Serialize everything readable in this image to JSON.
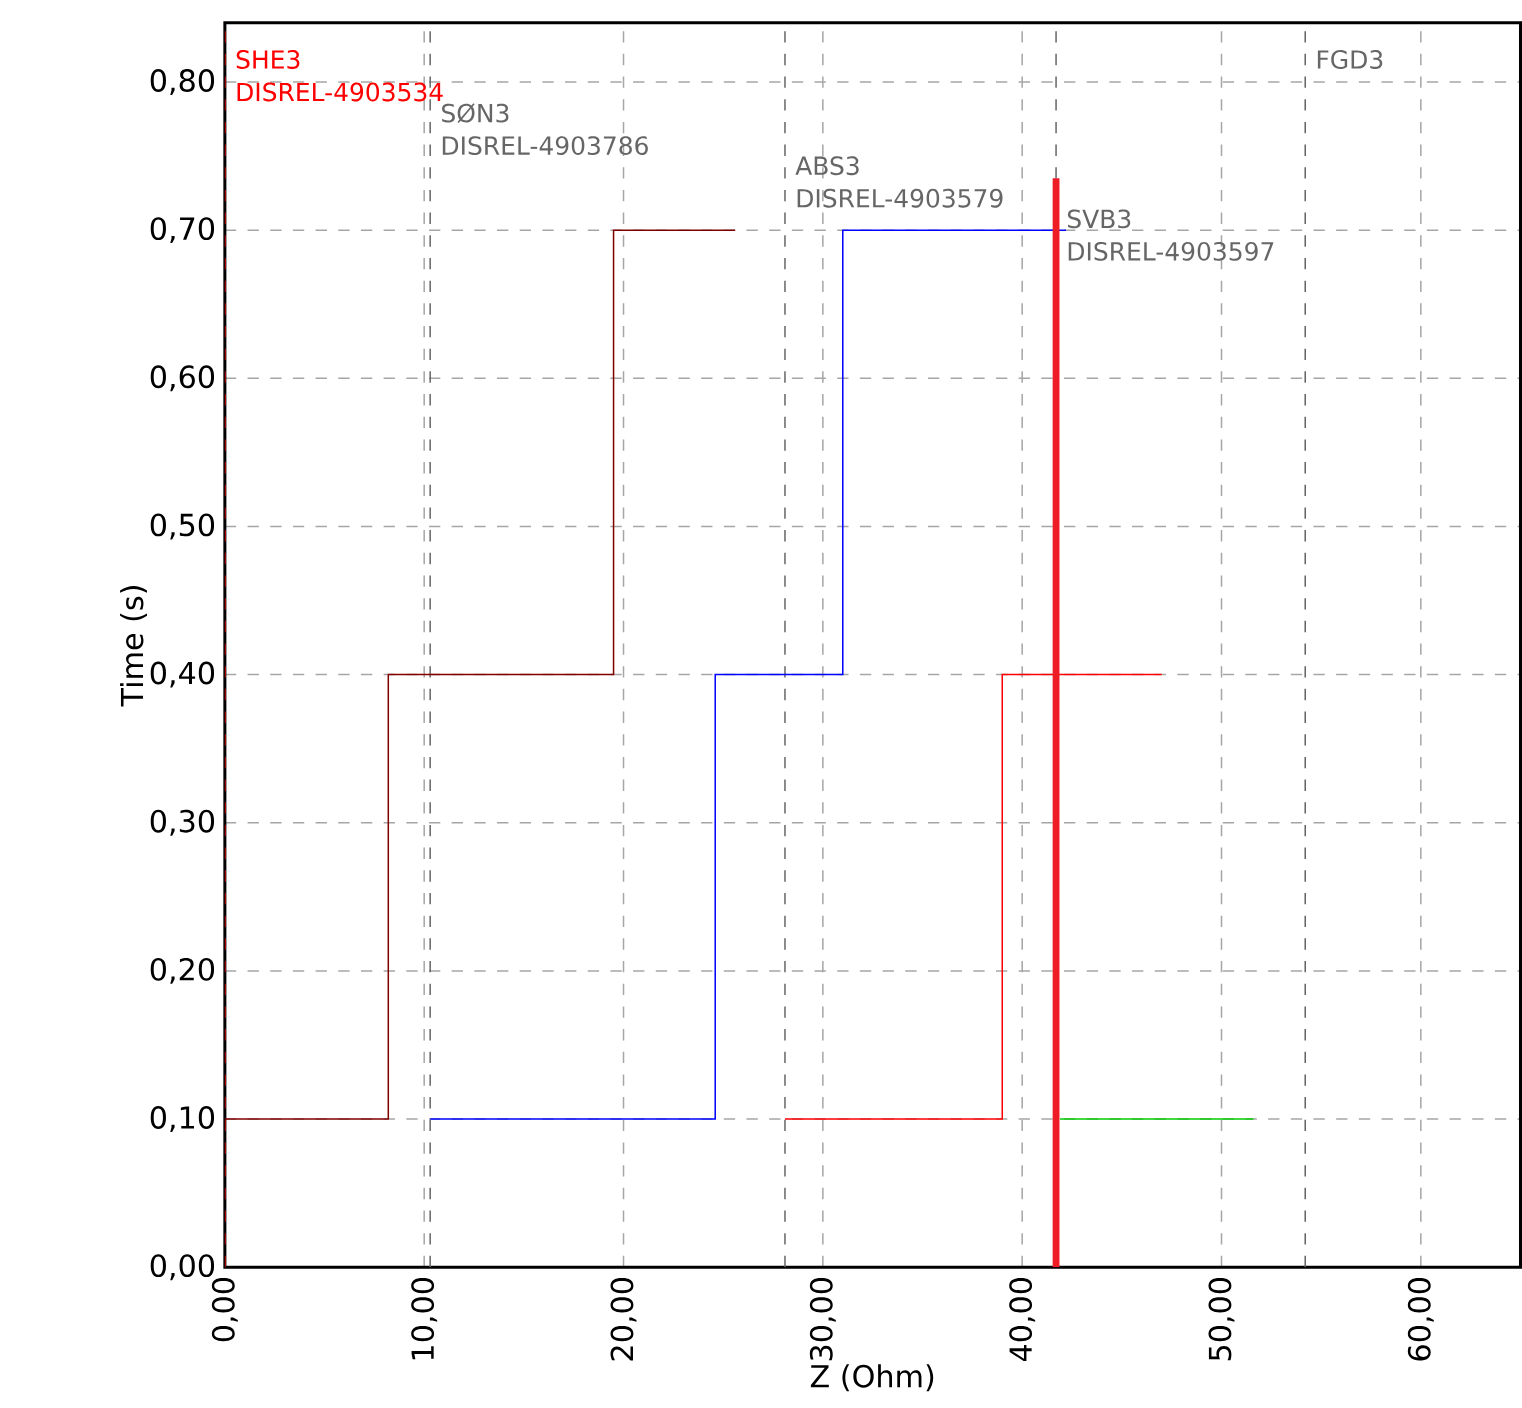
{
  "chart_data": {
    "type": "step",
    "xlabel": "Z (Ohm)",
    "ylabel": "Time (s)",
    "xlim": [
      0,
      65
    ],
    "ylim": [
      0,
      0.84
    ],
    "xticks": [
      {
        "value": 0,
        "label": "0,00"
      },
      {
        "value": 10,
        "label": "10,00"
      },
      {
        "value": 20,
        "label": "20,00"
      },
      {
        "value": 30,
        "label": "30,00"
      },
      {
        "value": 40,
        "label": "40,00"
      },
      {
        "value": 50,
        "label": "50,00"
      },
      {
        "value": 60,
        "label": "60,00"
      }
    ],
    "yticks": [
      {
        "value": 0,
        "label": "0,00"
      },
      {
        "value": 0.1,
        "label": "0,10"
      },
      {
        "value": 0.2,
        "label": "0,20"
      },
      {
        "value": 0.3,
        "label": "0,30"
      },
      {
        "value": 0.4,
        "label": "0,40"
      },
      {
        "value": 0.5,
        "label": "0,50"
      },
      {
        "value": 0.6,
        "label": "0,60"
      },
      {
        "value": 0.7,
        "label": "0,70"
      },
      {
        "value": 0.8,
        "label": "0,80"
      }
    ],
    "grid": true,
    "marker": "none",
    "line_style": "solid",
    "series": [
      {
        "color": "#800000",
        "x": [
          0,
          8.2,
          19.5,
          25.6
        ],
        "values": [
          0.1,
          0.4,
          0.7,
          0.7
        ]
      },
      {
        "color": "#0000ff",
        "x": [
          10.3,
          24.6,
          31.0,
          42.2
        ],
        "values": [
          0.1,
          0.4,
          0.7,
          0.7
        ]
      },
      {
        "color": "#ff0000",
        "x": [
          28.1,
          39.0,
          47.0
        ],
        "values": [
          0.1,
          0.4,
          0.4
        ]
      },
      {
        "color": "#00cc00",
        "x": [
          41.9,
          51.6
        ],
        "values": [
          0.1,
          0.1
        ]
      },
      {
        "type": "line",
        "color": "#ee1c24",
        "x": [
          41.7,
          41.7
        ],
        "values": [
          0,
          0.735
        ]
      }
    ],
    "ref_lines": [
      {
        "axis": "x",
        "value": 0,
        "label": "SHE3 DISREL-4903534",
        "color": "#ff0000",
        "line_style": "dashed"
      },
      {
        "axis": "x",
        "value": 10.3,
        "label": "SØN3 DISREL-4903786",
        "color": "#666666",
        "line_style": "dashed"
      },
      {
        "axis": "x",
        "value": 28.1,
        "label": "ABS3 DISREL-4903579",
        "color": "#666666",
        "line_style": "dashed"
      },
      {
        "axis": "x",
        "value": 41.7,
        "label": "SVB3 DISREL-4903597",
        "color": "#666666",
        "line_style": "dashed"
      },
      {
        "axis": "x",
        "value": 54.2,
        "label": "FGD3",
        "color": "#666666",
        "line_style": "dashed"
      }
    ]
  }
}
